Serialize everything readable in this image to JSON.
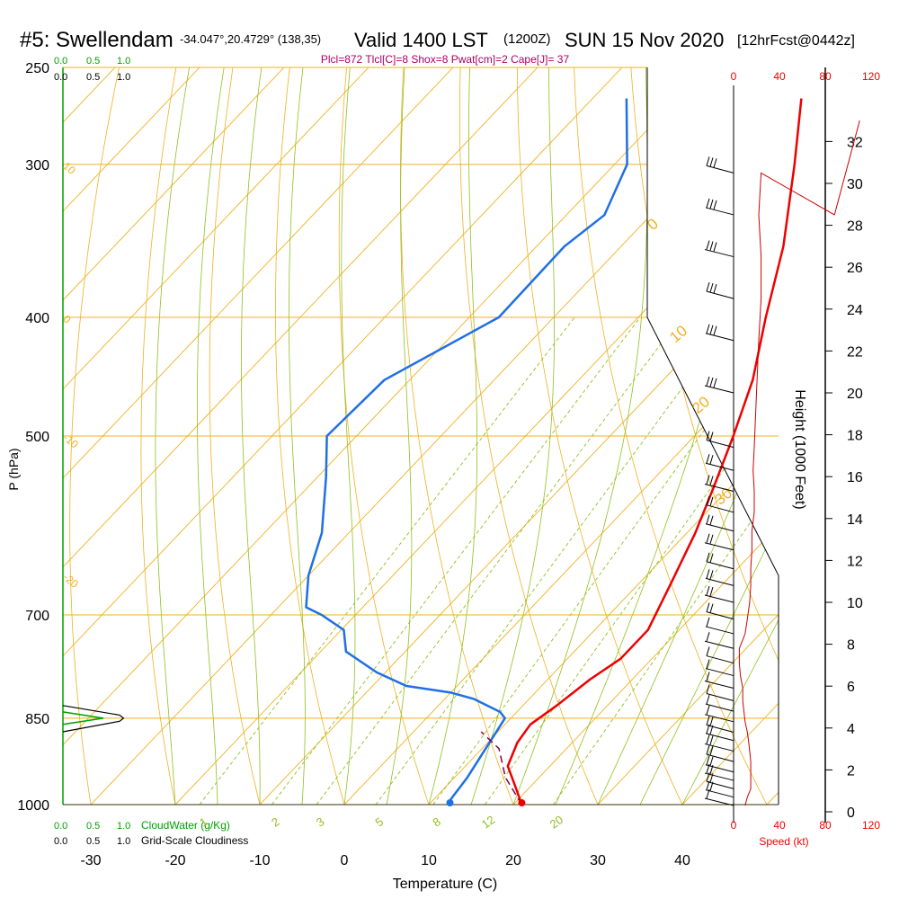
{
  "header": {
    "station": "#5: Swellendam",
    "coords": "-34.047°,20.4729° (138,35)",
    "valid": "Valid 1400 LST",
    "zulu": "(1200Z)",
    "date": "SUN 15 Nov 2020",
    "forecast": "[12hrFcst@0442z]",
    "params": "Plcl=872 Tlcl[C]=8 Shox=8 Pwat[cm]=2 Cape[J]= 37"
  },
  "colors": {
    "temperature": "#ee0000",
    "dewpoint": "#1f6fe6",
    "isotherm": "#f0b020",
    "dry_adiabat": "#f0b020",
    "moist_adiabat": "#90c020",
    "mixing_ratio": "#90c020",
    "parcel": "#880044",
    "cloud": "#00a000",
    "speed": "#cc0000",
    "params_text": "#aa0066"
  },
  "cloud_scale": {
    "top_green": [
      "0.0",
      "0.5",
      "1.0"
    ],
    "top_black": [
      "0.0",
      "0.5",
      "1.0"
    ],
    "bottom_green": [
      "0.0",
      "0.5",
      "1.0"
    ],
    "bottom_green_label": "CloudWater (g/Kg)",
    "bottom_black": [
      "0.0",
      "0.5",
      "1.0"
    ],
    "bottom_black_label": "Grid-Scale Cloudiness"
  },
  "speed_scale": {
    "top_ticks": [
      "0",
      "40",
      "80",
      "120"
    ],
    "bottom_ticks": [
      "0",
      "40",
      "80",
      "120"
    ],
    "label": "Speed (kt)"
  },
  "chart_data": {
    "type": "line",
    "title": "#5: Swellendam",
    "xlabel": "Temperature (C)",
    "ylabel": "P (hPa)",
    "y2label": "Height (1000 Feet)",
    "xlim": [
      -30,
      40
    ],
    "ylim": [
      1000,
      250
    ],
    "y_scale": "log",
    "x_ticks": [
      -30,
      -20,
      -10,
      0,
      10,
      20,
      30,
      40
    ],
    "y_ticks": [
      250,
      300,
      400,
      500,
      700,
      850,
      1000
    ],
    "height_ticks": [
      0,
      2,
      4,
      6,
      8,
      10,
      12,
      14,
      16,
      18,
      20,
      22,
      24,
      26,
      28,
      30,
      32
    ],
    "grid": true,
    "series": [
      {
        "name": "temperature",
        "points": [
          [
            1000,
            21.0
          ],
          [
            970,
            18.5
          ],
          [
            930,
            15.0
          ],
          [
            890,
            13.5
          ],
          [
            860,
            13.0
          ],
          [
            830,
            14.0
          ],
          [
            790,
            15.0
          ],
          [
            760,
            16.3
          ],
          [
            720,
            16.3
          ],
          [
            660,
            13.8
          ],
          [
            600,
            11.0
          ],
          [
            550,
            8.0
          ],
          [
            500,
            4.6
          ],
          [
            450,
            0.6
          ],
          [
            400,
            -4.9
          ],
          [
            350,
            -10.8
          ],
          [
            300,
            -18.7
          ],
          [
            265,
            -25.3
          ]
        ]
      },
      {
        "name": "dewpoint",
        "points": [
          [
            1000,
            12.5
          ],
          [
            990,
            12.0
          ],
          [
            950,
            11.5
          ],
          [
            850,
            9.3
          ],
          [
            840,
            8.0
          ],
          [
            820,
            3.5
          ],
          [
            810,
            0.0
          ],
          [
            800,
            -6.0
          ],
          [
            780,
            -11.0
          ],
          [
            750,
            -17.0
          ],
          [
            720,
            -19.7
          ],
          [
            700,
            -24.0
          ],
          [
            690,
            -26.7
          ],
          [
            650,
            -30.0
          ],
          [
            600,
            -33.2
          ],
          [
            540,
            -39.0
          ],
          [
            500,
            -43.5
          ],
          [
            450,
            -43.0
          ],
          [
            400,
            -36.5
          ],
          [
            350,
            -36.7
          ],
          [
            330,
            -35.5
          ],
          [
            300,
            -38.5
          ],
          [
            265,
            -46.0
          ]
        ]
      },
      {
        "name": "parcel",
        "points": [
          [
            1000,
            21.0
          ],
          [
            950,
            16.0
          ],
          [
            900,
            12.0
          ],
          [
            872,
            8.0
          ]
        ]
      }
    ],
    "isotherm_labels": [
      "10",
      "0",
      "-10",
      "-20",
      "0",
      "10",
      "20",
      "30"
    ],
    "mixing_ratio_labels": [
      "1",
      "2",
      "3",
      "5",
      "8",
      "12",
      "20"
    ],
    "cloud_profile": [
      [
        860,
        0.0
      ],
      [
        852,
        0.4
      ],
      [
        850,
        0.5
      ],
      [
        848,
        0.4
      ],
      [
        840,
        0.0
      ]
    ],
    "cloudiness_profile": [
      [
        872,
        0.0
      ],
      [
        855,
        0.7
      ],
      [
        850,
        0.75
      ],
      [
        845,
        0.7
      ],
      [
        830,
        0.0
      ]
    ],
    "wind_speed_kt": [
      10,
      12,
      15,
      15,
      15,
      15,
      14,
      13,
      12,
      10,
      9,
      8,
      8,
      6,
      5,
      5,
      10,
      12,
      14,
      15,
      15,
      16,
      16,
      18,
      18,
      17,
      18,
      20,
      22,
      24,
      24,
      22,
      24
    ],
    "wind_heights_kft": [
      0.3,
      0.7,
      1.1,
      1.5,
      1.9,
      2.4,
      2.9,
      3.4,
      3.8,
      4.3,
      4.8,
      5.3,
      5.9,
      6.5,
      7.1,
      7.8,
      8.5,
      9.2,
      10.0,
      10.8,
      11.6,
      12.5,
      13.4,
      14.3,
      15.3,
      16.3,
      17.4,
      20.0,
      22.5,
      24.5,
      26.5,
      28.5,
      30.5
    ]
  }
}
